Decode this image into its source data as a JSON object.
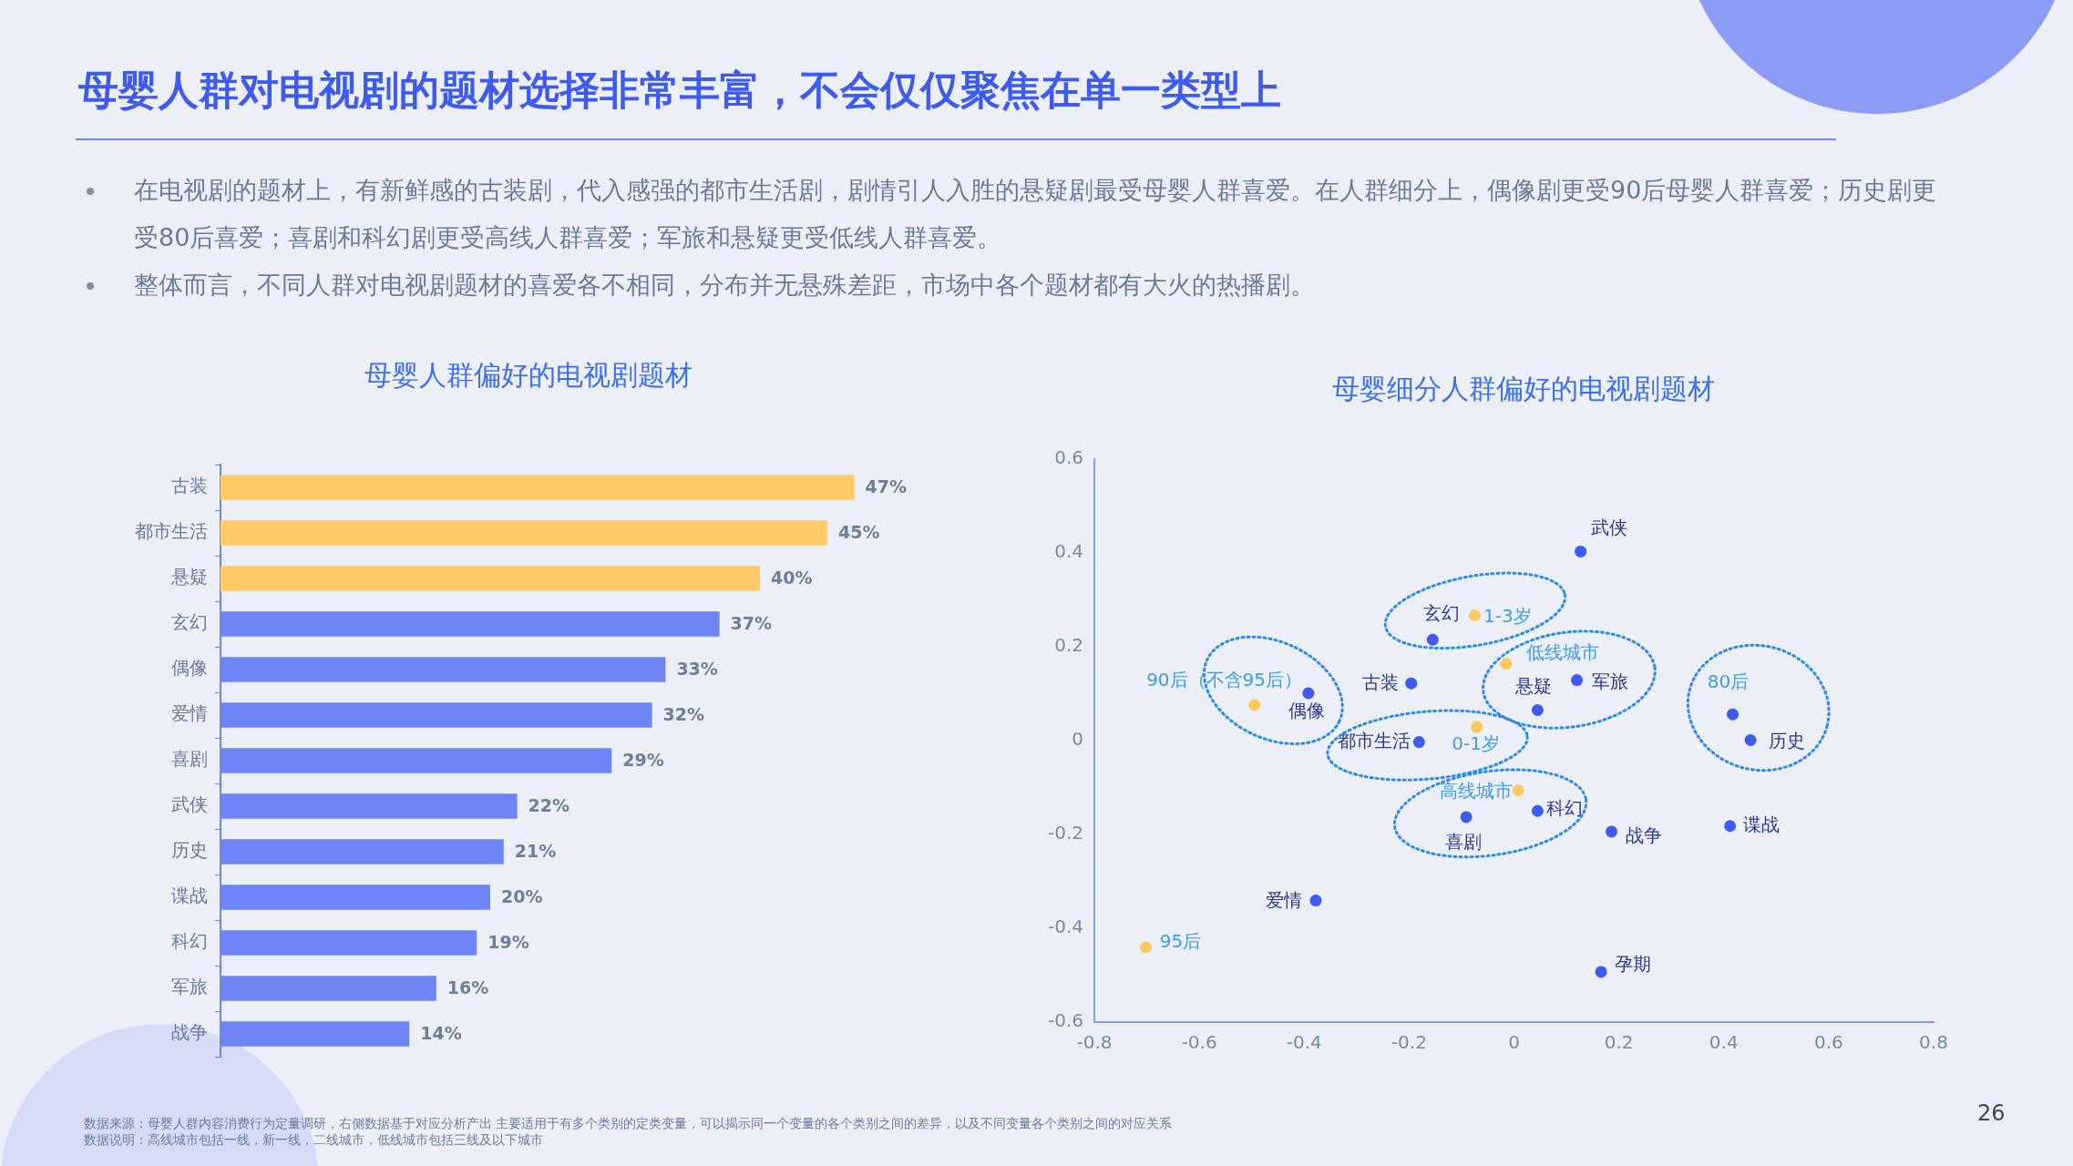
{
  "chart_data": [
    {
      "type": "other",
      "title": "母婴人群对电视剧的题材选择非常丰富，不会仅仅聚焦在单一类型上",
      "annotations": [
        "在电视剧的题材上，有新鲜感的古装剧，代入感强的都市生活剧，剧情引人入胜的悬疑剧最受母婴人群喜爱。在人群细分上，偶像剧更受90后母婴人群喜爱；历史剧更受80后喜爱；喜剧和科幻剧更受高线人群喜爱；军旅和悬疑更受低线人群喜爱。",
        "整体而言，不同人群对电视剧题材的喜爱各不相同，分布并无悬殊差距，市场中各个题材都有大火的热播剧。",
        "数据来源：母婴人群内容消费行为定量调研，右侧数据基于对应分析产出 主要适用于有多个类别的定类变量，可以揭示同一个变量的各个类别之间的差异，以及不同变量各个类别之间的对应关系",
        "数据说明：高线城市包括一线，新一线，二线城市，低线城市包括三线及以下城市",
        "26"
      ]
    },
    {
      "type": "bar",
      "orientation": "horizontal",
      "title": "母婴人群偏好的电视剧题材",
      "categories": [
        "古装",
        "都市生活",
        "悬疑",
        "玄幻",
        "偶像",
        "爱情",
        "喜剧",
        "武侠",
        "历史",
        "谍战",
        "科幻",
        "军旅",
        "战争"
      ],
      "values": [
        47,
        45,
        40,
        37,
        33,
        32,
        29,
        22,
        21,
        20,
        19,
        16,
        14
      ],
      "value_labels": [
        "47%",
        "45%",
        "40%",
        "37%",
        "33%",
        "32%",
        "29%",
        "22%",
        "21%",
        "20%",
        "19%",
        "16%",
        "14%"
      ],
      "colors": [
        "#ffcb66",
        "#ffcb66",
        "#ffcb66",
        "#6e86f5",
        "#6e86f5",
        "#6e86f5",
        "#6e86f5",
        "#6e86f5",
        "#6e86f5",
        "#6e86f5",
        "#6e86f5",
        "#6e86f5",
        "#6e86f5"
      ],
      "tick_labels": "y",
      "legend": false
    },
    {
      "type": "scatter",
      "title": "母婴细分人群偏好的电视剧题材",
      "x": [
        0.127,
        -0.155,
        -0.196,
        -0.392,
        0.045,
        0.12,
        -0.181,
        0.451,
        0.045,
        -0.091,
        0.186,
        0.412,
        -0.378,
        0.166,
        0.417,
        -0.075,
        -0.015,
        -0.071,
        0.008,
        -0.495,
        -0.702
      ],
      "values": [
        0.403,
        0.215,
        0.122,
        0.101,
        0.065,
        0.129,
        -0.003,
        0.001,
        -0.15,
        -0.163,
        -0.194,
        -0.182,
        -0.341,
        -0.493,
        0.056,
        0.267,
        0.164,
        0.029,
        -0.106,
        0.076,
        -0.441
      ],
      "colors": [
        "#3d5af1",
        "#3d5af1",
        "#3d5af1",
        "#3d5af1",
        "#3d5af1",
        "#3d5af1",
        "#3d5af1",
        "#3d5af1",
        "#3d5af1",
        "#3d5af1",
        "#3d5af1",
        "#3d5af1",
        "#3d5af1",
        "#3d5af1",
        "#3d5af1",
        "#ffc85c",
        "#ffc85c",
        "#ffc85c",
        "#ffc85c",
        "#ffc85c",
        "#ffc85c"
      ],
      "annotations": [
        {
          "text": "武侠",
          "x": 0.127,
          "y": 0.403
        },
        {
          "text": "玄幻",
          "x": -0.155,
          "y": 0.215
        },
        {
          "text": "古装",
          "x": -0.196,
          "y": 0.122
        },
        {
          "text": "偶像",
          "x": -0.392,
          "y": 0.101
        },
        {
          "text": "悬疑",
          "x": 0.045,
          "y": 0.065
        },
        {
          "text": "军旅",
          "x": 0.12,
          "y": 0.129
        },
        {
          "text": "都市生活",
          "x": -0.181,
          "y": -0.003
        },
        {
          "text": "历史",
          "x": 0.451,
          "y": 0.001
        },
        {
          "text": "科幻",
          "x": 0.045,
          "y": -0.15
        },
        {
          "text": "喜剧",
          "x": -0.091,
          "y": -0.163
        },
        {
          "text": "战争",
          "x": 0.186,
          "y": -0.194
        },
        {
          "text": "谍战",
          "x": 0.412,
          "y": -0.182
        },
        {
          "text": "爱情",
          "x": -0.378,
          "y": -0.341
        },
        {
          "text": "孕期",
          "x": 0.166,
          "y": -0.493
        },
        {
          "text": "80后",
          "x": 0.417,
          "y": 0.056
        },
        {
          "text": "1-3岁",
          "x": -0.075,
          "y": 0.267
        },
        {
          "text": "低线城市",
          "x": -0.015,
          "y": 0.164
        },
        {
          "text": "0-1岁",
          "x": -0.071,
          "y": 0.029
        },
        {
          "text": "高线城市",
          "x": 0.008,
          "y": -0.106
        },
        {
          "text": "90后（不含95后）",
          "x": -0.495,
          "y": 0.076
        },
        {
          "text": "95后",
          "x": -0.702,
          "y": -0.441
        }
      ],
      "xlim": [
        -0.8,
        0.8
      ],
      "xticks": [
        -0.8,
        -0.6,
        -0.4,
        -0.2,
        0,
        0.2,
        0.4,
        0.6,
        0.8
      ],
      "ylim": [
        -0.6,
        0.6
      ],
      "yticks": [
        -0.6,
        -0.4,
        -0.2,
        0,
        0.2,
        0.4,
        0.6
      ],
      "grid": false,
      "legend": false,
      "marker": "circle"
    }
  ]
}
